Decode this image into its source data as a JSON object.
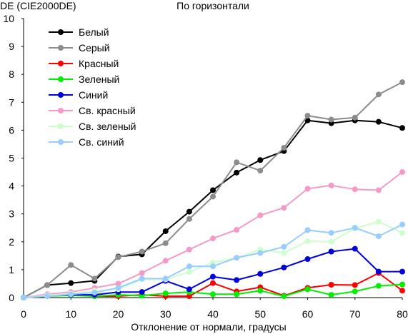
{
  "chart_data": {
    "type": "line",
    "title": "По горизонтали",
    "ylabel": "DE (CIE2000DE)",
    "xlabel": "Отклонение от нормали, градусы",
    "xlim": [
      0,
      80
    ],
    "ylim": [
      0,
      10
    ],
    "x_ticks": [
      0,
      10,
      20,
      30,
      40,
      50,
      60,
      70,
      80
    ],
    "y_ticks": [
      0,
      1,
      2,
      3,
      4,
      5,
      6,
      7,
      8,
      9,
      10
    ],
    "grid": false,
    "legend_position": "top-left",
    "x": [
      0,
      5,
      10,
      15,
      20,
      25,
      30,
      35,
      40,
      45,
      50,
      55,
      60,
      65,
      70,
      75,
      80
    ],
    "series": [
      {
        "name": "Белый",
        "color": "#000000",
        "values": [
          0,
          0.45,
          0.52,
          0.6,
          1.47,
          1.55,
          2.38,
          3.08,
          3.85,
          4.48,
          4.93,
          5.25,
          6.35,
          6.25,
          6.35,
          6.3,
          6.08
        ]
      },
      {
        "name": "Серый",
        "color": "#8c8c8c",
        "values": [
          0,
          0.45,
          1.17,
          0.68,
          1.45,
          1.65,
          1.95,
          2.82,
          3.62,
          4.85,
          4.55,
          5.37,
          6.52,
          6.38,
          6.45,
          7.28,
          7.72
        ]
      },
      {
        "name": "Красный",
        "color": "#ff0000",
        "values": [
          0,
          0.08,
          0.1,
          0.05,
          0.05,
          0.1,
          0.05,
          0.05,
          0.52,
          0.22,
          0.37,
          0.07,
          0.35,
          0.46,
          0.45,
          0.88,
          0.25
        ]
      },
      {
        "name": "Зеленый",
        "color": "#00ee00",
        "values": [
          0,
          0.05,
          0.08,
          0.05,
          0.1,
          0.07,
          0.15,
          0.2,
          0.12,
          0.12,
          0.25,
          0.05,
          0.3,
          0.1,
          0.22,
          0.42,
          0.47
        ]
      },
      {
        "name": "Синий",
        "color": "#0000dd",
        "values": [
          0,
          0.08,
          0.1,
          0.1,
          0.2,
          0.2,
          0.6,
          0.3,
          0.75,
          0.63,
          0.85,
          1.08,
          1.38,
          1.65,
          1.75,
          0.93,
          0.93
        ]
      },
      {
        "name": "Св. красный",
        "color": "#f59ac8",
        "values": [
          0,
          0.12,
          0.2,
          0.35,
          0.5,
          0.88,
          1.32,
          1.72,
          2.12,
          2.43,
          2.95,
          3.22,
          3.9,
          4.02,
          3.88,
          3.85,
          4.5
        ]
      },
      {
        "name": "Св. зеленый",
        "color": "#ccffcc",
        "values": [
          0,
          0.08,
          0.15,
          0.25,
          0.3,
          0.65,
          0.65,
          0.92,
          1.25,
          1.42,
          1.72,
          1.6,
          2.02,
          2.0,
          2.48,
          2.72,
          2.32
        ]
      },
      {
        "name": "Св. синий",
        "color": "#99ccff",
        "values": [
          0,
          0.05,
          0.12,
          0.18,
          0.35,
          0.68,
          0.68,
          1.12,
          1.12,
          1.43,
          1.6,
          1.82,
          2.42,
          2.32,
          2.5,
          2.2,
          2.62
        ]
      }
    ]
  }
}
